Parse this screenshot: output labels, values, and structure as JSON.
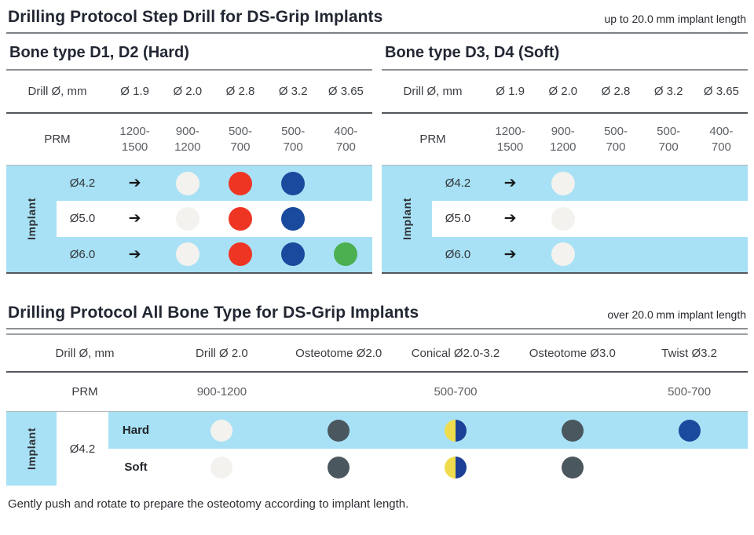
{
  "header": {
    "title": "Drilling Protocol Step Drill for DS-Grip Implants",
    "note": "up to 20.0 mm implant length"
  },
  "icons": {
    "arrow": "➔"
  },
  "colors": {
    "band_blue": "#a8e1f5",
    "dot_white": "#f4f2ef",
    "dot_red": "#ee3524",
    "dot_blue": "#1a4a9e",
    "dot_green": "#4caf50",
    "dot_slate": "#4a575f",
    "dot_half_yellow": "#efdc4e",
    "dot_half_blue": "#1c3f97"
  },
  "step_tables": [
    {
      "subtitle": "Bone type D1, D2 (Hard)",
      "drill_label": "Drill Ø, mm",
      "columns": [
        "Ø 1.9",
        "Ø 2.0",
        "Ø 2.8",
        "Ø 3.2",
        "Ø 3.65"
      ],
      "prm_label": "PRM",
      "prm": [
        [
          "1200-",
          "1500"
        ],
        [
          "900-",
          "1200"
        ],
        [
          "500-",
          "700"
        ],
        [
          "500-",
          "700"
        ],
        [
          "400-",
          "700"
        ]
      ],
      "implant_label": "Implant",
      "rows": [
        {
          "size": "Ø4.2",
          "dots": [
            "white",
            "red",
            "blue",
            ""
          ]
        },
        {
          "size": "Ø5.0",
          "dots": [
            "white",
            "red",
            "blue",
            ""
          ]
        },
        {
          "size": "Ø6.0",
          "dots": [
            "white",
            "red",
            "blue",
            "green"
          ]
        }
      ]
    },
    {
      "subtitle": "Bone type D3, D4 (Soft)",
      "drill_label": "Drill Ø, mm",
      "columns": [
        "Ø 1.9",
        "Ø 2.0",
        "Ø 2.8",
        "Ø 3.2",
        "Ø 3.65"
      ],
      "prm_label": "PRM",
      "prm": [
        [
          "1200-",
          "1500"
        ],
        [
          "900-",
          "1200"
        ],
        [
          "500-",
          "700"
        ],
        [
          "500-",
          "700"
        ],
        [
          "400-",
          "700"
        ]
      ],
      "implant_label": "Implant",
      "rows": [
        {
          "size": "Ø4.2",
          "dots": [
            "white",
            "",
            "",
            ""
          ]
        },
        {
          "size": "Ø5.0",
          "dots": [
            "white",
            "",
            "",
            ""
          ]
        },
        {
          "size": "Ø6.0",
          "dots": [
            "white",
            "",
            "",
            ""
          ]
        }
      ]
    }
  ],
  "all_bone": {
    "title": "Drilling Protocol All Bone Type for DS-Grip Implants",
    "note": "over 20.0 mm implant length",
    "drill_label": "Drill Ø, mm",
    "columns": [
      "Drill Ø 2.0",
      "Osteotome Ø2.0",
      "Conical Ø2.0-3.2",
      "Osteotome Ø3.0",
      "Twist Ø3.2"
    ],
    "prm_label": "PRM",
    "prm": [
      "900-1200",
      "",
      "500-700",
      "",
      "500-700"
    ],
    "implant_label": "Implant",
    "size": "Ø4.2",
    "rows": [
      {
        "label": "Hard",
        "dots": [
          "white",
          "slate",
          "half",
          "slate",
          "blue"
        ]
      },
      {
        "label": "Soft",
        "dots": [
          "white",
          "slate",
          "half",
          "slate",
          ""
        ]
      }
    ]
  },
  "footnote": "Gently push and rotate to prepare the osteotomy according to implant length."
}
